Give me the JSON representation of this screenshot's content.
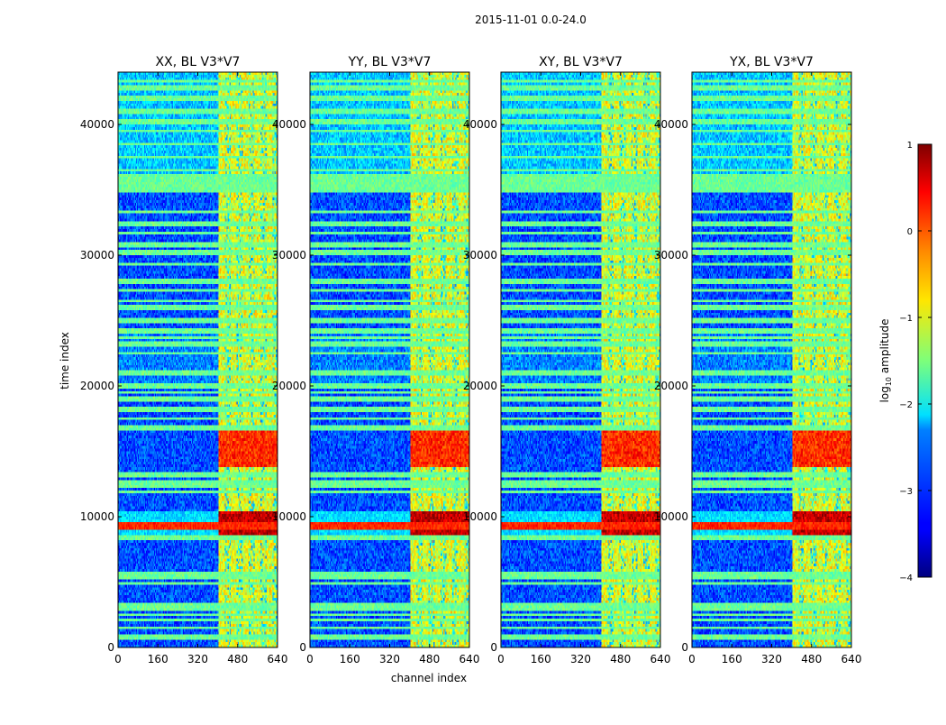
{
  "figure": {
    "suptitle": "2015-11-01 0.0-24.0",
    "xlabel": "channel index",
    "ylabel": "time index"
  },
  "colorbar": {
    "label_prefix": "log",
    "label_subscript": "10",
    "label_suffix": " amplitude",
    "colormap": "jet",
    "ticks": [
      "1",
      "0",
      "−1",
      "−2",
      "−3",
      "−4"
    ],
    "tick_values": [
      1,
      0,
      -1,
      -2,
      -3,
      -4
    ],
    "range": [
      -4,
      1
    ]
  },
  "chart_data": {
    "type": "heatmap",
    "colormap": "jet",
    "value_scale": "log10 amplitude",
    "xlim": [
      0,
      640
    ],
    "ylim": [
      0,
      44000
    ],
    "xticks": [
      0,
      160,
      320,
      480,
      640
    ],
    "xtick_labels": [
      "0",
      "160",
      "320",
      "480",
      "640"
    ],
    "yticks": [
      0,
      10000,
      20000,
      30000,
      40000
    ],
    "ytick_labels": [
      "0",
      "10000",
      "20000",
      "30000",
      "40000"
    ],
    "panels": [
      {
        "title": "XX, BL V3*V7"
      },
      {
        "title": "YY, BL V3*V7"
      },
      {
        "title": "XY, BL V3*V7"
      },
      {
        "title": "YX, BL V3*V7"
      }
    ],
    "background_level": -3.0,
    "bright_channel_range": [
      405,
      640
    ],
    "bright_channel_level": -1.0,
    "strong_bands": [
      {
        "time_range": [
          8600,
          10400
        ],
        "level": 0.5
      },
      {
        "time_range": [
          13800,
          16600
        ],
        "level": 0.0
      }
    ],
    "flagged_rows_level": -1.6
  }
}
